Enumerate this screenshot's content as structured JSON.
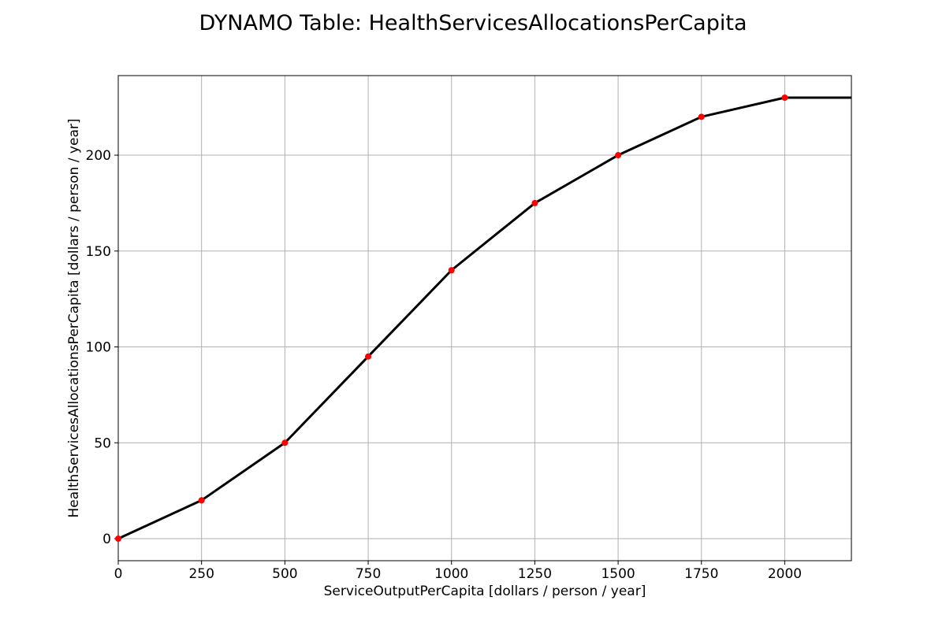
{
  "chart_data": {
    "type": "line",
    "title": "DYNAMO Table: HealthServicesAllocationsPerCapita",
    "xlabel": "ServiceOutputPerCapita [dollars / person / year]",
    "ylabel": "HealthServicesAllocationsPerCapita [dollars / person / year]",
    "xlim": [
      0,
      2200
    ],
    "ylim": [
      -11.5,
      241.5
    ],
    "xticks": [
      0,
      250,
      500,
      750,
      1000,
      1250,
      1500,
      1750,
      2000
    ],
    "yticks": [
      0,
      50,
      100,
      150,
      200
    ],
    "grid": true,
    "line": {
      "x": [
        0,
        250,
        500,
        750,
        1000,
        1250,
        1500,
        1750,
        2000,
        2200
      ],
      "y": [
        0,
        20,
        50,
        95,
        140,
        175,
        200,
        220,
        230,
        230
      ],
      "color": "#000000"
    },
    "points": {
      "x": [
        0,
        250,
        500,
        750,
        1000,
        1250,
        1500,
        1750,
        2000
      ],
      "y": [
        0,
        20,
        50,
        95,
        140,
        175,
        200,
        220,
        230
      ],
      "color": "#ff0000"
    }
  }
}
